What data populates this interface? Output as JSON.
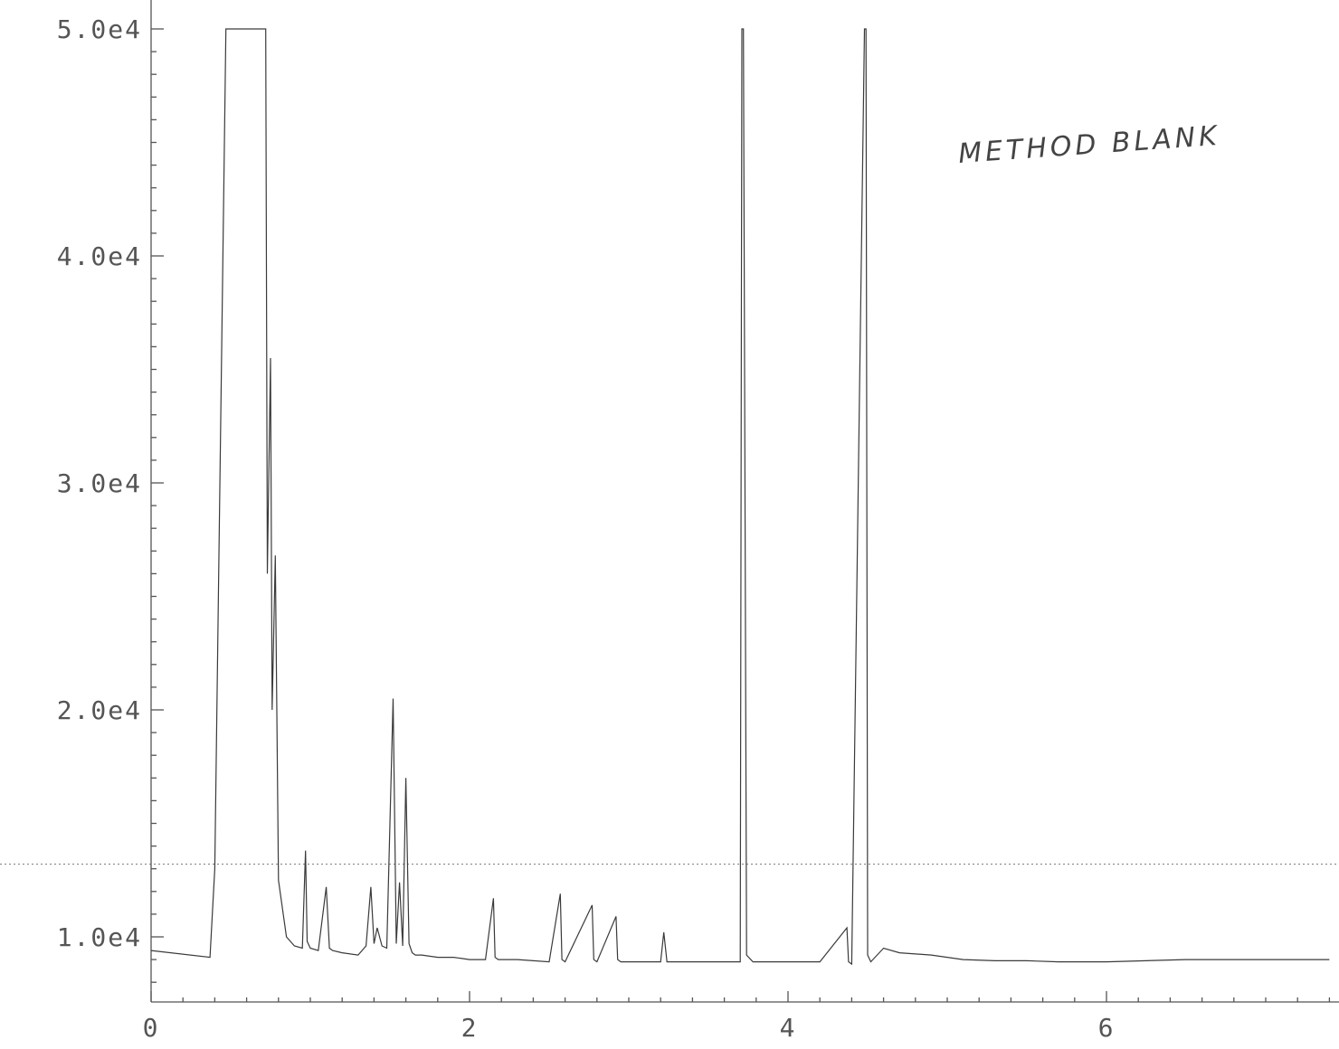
{
  "chart_data": {
    "type": "line",
    "annotation": "METHOD BLANK",
    "xlim": [
      0,
      7.4
    ],
    "ylim": [
      7000,
      50000
    ],
    "x_ticks": [
      {
        "value": 0,
        "label": "0"
      },
      {
        "value": 2,
        "label": "2"
      },
      {
        "value": 4,
        "label": "4"
      },
      {
        "value": 6,
        "label": "6"
      }
    ],
    "y_ticks": [
      {
        "value": 10000,
        "label": "1.0e4"
      },
      {
        "value": 20000,
        "label": "2.0e4"
      },
      {
        "value": 30000,
        "label": "3.0e4"
      },
      {
        "value": 40000,
        "label": "4.0e4"
      },
      {
        "value": 50000,
        "label": "5.0e4"
      }
    ],
    "reference_line_y": 13200,
    "series": [
      {
        "x": [
          0.0,
          0.37,
          0.4,
          0.47,
          0.48,
          0.72,
          0.73,
          0.75,
          0.76,
          0.78,
          0.8,
          0.85,
          0.9,
          0.95,
          0.97,
          0.98,
          1.0,
          1.05,
          1.1,
          1.12,
          1.14,
          1.2,
          1.3,
          1.35,
          1.38,
          1.4,
          1.42,
          1.45,
          1.48,
          1.52,
          1.54,
          1.56,
          1.58,
          1.6,
          1.62,
          1.64,
          1.66,
          1.7,
          1.8,
          1.9,
          2.0,
          2.1,
          2.15,
          2.16,
          2.18,
          2.3,
          2.5,
          2.57,
          2.58,
          2.6,
          2.77,
          2.78,
          2.8,
          2.92,
          2.93,
          2.95,
          3.1,
          3.2,
          3.22,
          3.24,
          3.4,
          3.6,
          3.7,
          3.71,
          3.72,
          3.74,
          3.78,
          3.8,
          3.9,
          4.0,
          4.2,
          4.37,
          4.38,
          4.4,
          4.48,
          4.49,
          4.5,
          4.52,
          4.6,
          4.7,
          4.9,
          5.1,
          5.3,
          5.5,
          5.7,
          6.0,
          6.5,
          7.0,
          7.4
        ],
        "y": [
          9400,
          9100,
          13000,
          50000,
          50000,
          50000,
          26000,
          35500,
          20000,
          26800,
          12500,
          10000,
          9600,
          9500,
          13800,
          9800,
          9500,
          9400,
          12200,
          9500,
          9400,
          9300,
          9200,
          9600,
          12200,
          9700,
          10400,
          9600,
          9500,
          20500,
          9700,
          12400,
          9600,
          17000,
          9700,
          9300,
          9200,
          9200,
          9100,
          9100,
          9000,
          9000,
          11700,
          9100,
          9000,
          9000,
          8900,
          11900,
          9000,
          8900,
          11400,
          9000,
          8900,
          10900,
          9000,
          8900,
          8900,
          8900,
          10200,
          8900,
          8900,
          8900,
          8900,
          50000,
          50000,
          9200,
          8900,
          8900,
          8900,
          8900,
          8900,
          10400,
          8900,
          8800,
          50000,
          50000,
          9200,
          8900,
          9500,
          9300,
          9200,
          9000,
          8950,
          8950,
          8900,
          8900,
          9000,
          9000,
          9000
        ]
      }
    ]
  }
}
